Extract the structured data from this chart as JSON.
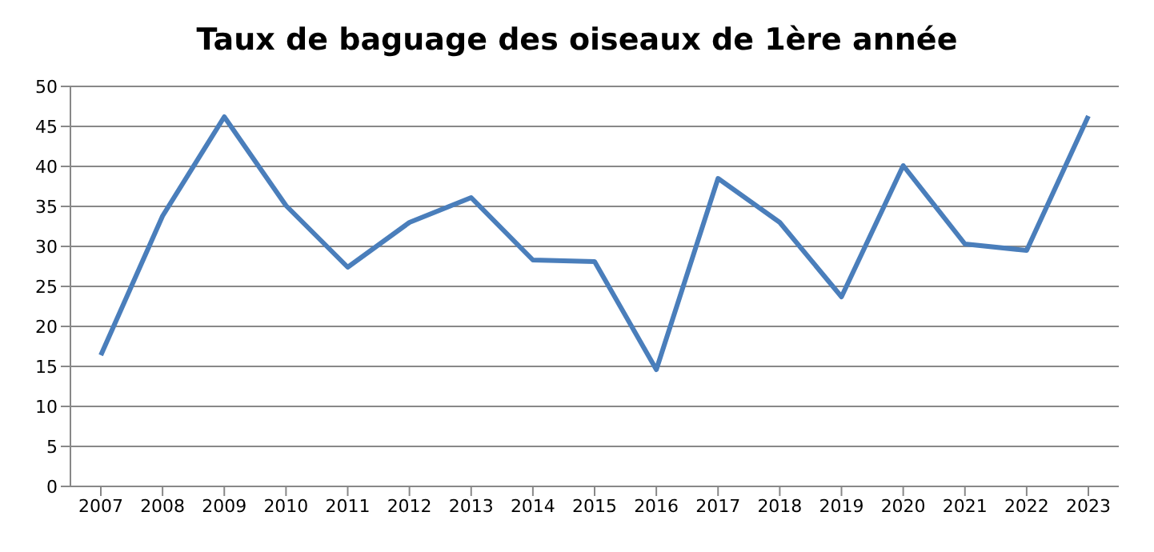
{
  "chart_data": {
    "type": "line",
    "title": "Taux de baguage des oiseaux de 1ère année",
    "categories": [
      "2007",
      "2008",
      "2009",
      "2010",
      "2011",
      "2012",
      "2013",
      "2014",
      "2015",
      "2016",
      "2017",
      "2018",
      "2019",
      "2020",
      "2021",
      "2022",
      "2023"
    ],
    "series": [
      {
        "color": "#4a7ebb",
        "values": [
          16.4,
          33.8,
          46.2,
          35.1,
          27.4,
          33.0,
          36.1,
          28.3,
          28.1,
          14.6,
          38.5,
          33.0,
          23.7,
          40.1,
          30.3,
          29.5,
          46.3
        ]
      }
    ],
    "ylim": [
      0,
      50
    ],
    "yticks": [
      0,
      5,
      10,
      15,
      20,
      25,
      30,
      35,
      40,
      45,
      50
    ],
    "grid": "y",
    "legend": false,
    "marker": "none",
    "line_style": "solid"
  }
}
